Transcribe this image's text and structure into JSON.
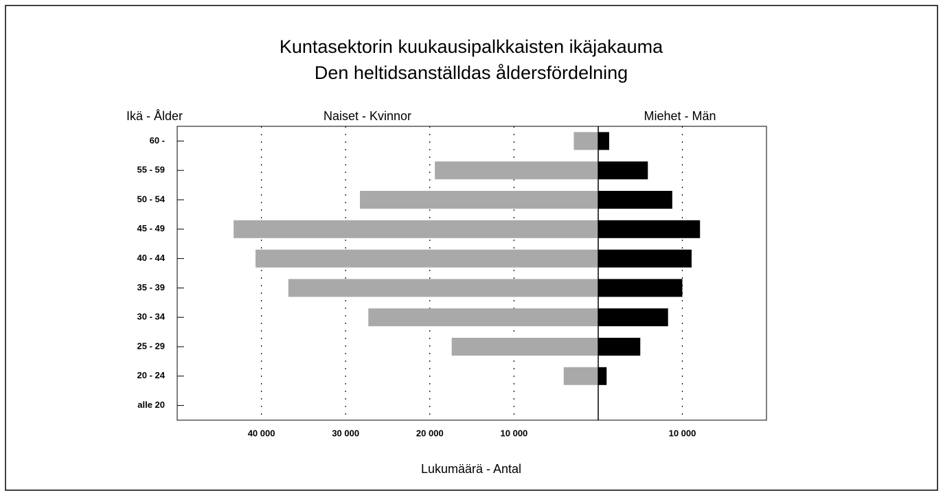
{
  "chart_data": {
    "type": "pyramid",
    "title": [
      "Kuntasektorin kuukausipalkkaisten ikäjakauma",
      "Den heltidsanställdas åldersfördelning"
    ],
    "ylabel": "Ikä - Ålder",
    "xlabel": "Lukumäärä - Antal",
    "categories": [
      "60 -",
      "55 - 59",
      "50 - 54",
      "45 - 49",
      "40 - 44",
      "35 - 39",
      "30 - 34",
      "25 - 29",
      "20 - 24",
      "alle 20"
    ],
    "grid": true,
    "series": [
      {
        "name": "Naiset - Kvinnor",
        "color": "#a9a9a9",
        "side": "left",
        "values": [
          2900,
          19400,
          28300,
          43300,
          40700,
          36800,
          27300,
          17400,
          4100,
          0
        ],
        "xlim": [
          50000,
          0
        ],
        "xticks": [
          {
            "value": 40000,
            "label": "40 000"
          },
          {
            "value": 30000,
            "label": "30 000"
          },
          {
            "value": 20000,
            "label": "20 000"
          },
          {
            "value": 10000,
            "label": "10 000"
          }
        ]
      },
      {
        "name": "Miehet - Män",
        "color": "#000000",
        "side": "right",
        "values": [
          1300,
          5900,
          8800,
          12100,
          11100,
          10000,
          8300,
          5000,
          1000,
          0
        ],
        "xlim": [
          0,
          20000
        ],
        "xticks": [
          {
            "value": 10000,
            "label": "10 000"
          }
        ]
      }
    ]
  }
}
